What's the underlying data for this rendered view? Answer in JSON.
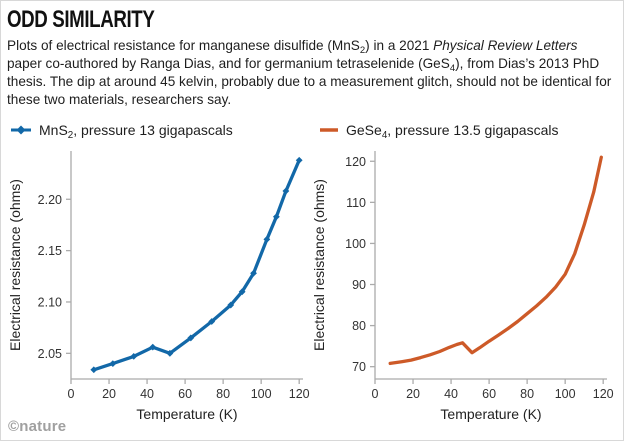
{
  "header": {
    "title": "ODD SIMILARITY",
    "caption_segments": [
      {
        "text": "Plots of electrical resistance for manganese disulfide (MnS"
      },
      {
        "text": "2",
        "sub": true
      },
      {
        "text": ") in a 2021 "
      },
      {
        "text": "Physical Review Letters",
        "italic": true
      },
      {
        "text": " paper co-authored by Ranga Dias, and for germanium tetraselenide (GeS"
      },
      {
        "text": "4",
        "sub": true
      },
      {
        "text": "), from Dias’s 2013 PhD thesis. The dip at around 45 kelvin, probably due to a measurement glitch, should not be identical for these two materials, researchers say."
      }
    ]
  },
  "legend": {
    "items": [
      {
        "id": "mns2",
        "color": "#1268a8",
        "marker": "line-diamond",
        "label_segments": [
          {
            "text": "MnS"
          },
          {
            "text": "2",
            "sub": true
          },
          {
            "text": ", pressure 13 gigapascals"
          }
        ]
      },
      {
        "id": "gese4",
        "color": "#cd5a28",
        "marker": "line",
        "label_segments": [
          {
            "text": "GeSe"
          },
          {
            "text": "4",
            "sub": true
          },
          {
            "text": ", pressure 13.5 gigapascals"
          }
        ]
      }
    ]
  },
  "footer": {
    "credit": "©nature"
  },
  "colors": {
    "mns2_line": "#1268a8",
    "gese4_line": "#cd5a28",
    "axis": "#ababab",
    "tick_text": "#333333"
  },
  "chart_data": [
    {
      "type": "line",
      "title": "MnS2, pressure 13 gigapascals",
      "xlabel": "Temperature (K)",
      "ylabel": "Electrical resistance (ohms)",
      "xlim": [
        0,
        122
      ],
      "ylim": [
        2.025,
        2.247
      ],
      "xticks": [
        0,
        20,
        40,
        60,
        80,
        100,
        120
      ],
      "xtick_labels": [
        "0",
        "20",
        "40",
        "60",
        "80",
        "100",
        "120"
      ],
      "yticks": [
        2.05,
        2.1,
        2.15,
        2.2
      ],
      "ytick_labels": [
        "2.05",
        "2.10",
        "2.15",
        "2.20"
      ],
      "grid": false,
      "legend_position": "top",
      "series": [
        {
          "name": "MnS2, pressure 13 gigapascals",
          "color": "#1268a8",
          "markers": true,
          "x": [
            12,
            22,
            33,
            43,
            52,
            63,
            74,
            84,
            90,
            96,
            103,
            108,
            113,
            120
          ],
          "y": [
            2.034,
            2.04,
            2.047,
            2.056,
            2.05,
            2.065,
            2.081,
            2.097,
            2.11,
            2.128,
            2.161,
            2.183,
            2.208,
            2.238
          ]
        }
      ]
    },
    {
      "type": "line",
      "title": "GeSe4, pressure 13.5 gigapascals",
      "xlabel": "Temperature (K)",
      "ylabel": "Electrical resistance (ohms)",
      "xlim": [
        0,
        122
      ],
      "ylim": [
        67,
        122.5
      ],
      "xticks": [
        0,
        20,
        40,
        60,
        80,
        100,
        120
      ],
      "xtick_labels": [
        "0",
        "20",
        "40",
        "60",
        "80",
        "100",
        "120"
      ],
      "yticks": [
        70,
        80,
        90,
        100,
        110,
        120
      ],
      "ytick_labels": [
        "70",
        "80",
        "90",
        "100",
        "110",
        "120"
      ],
      "grid": false,
      "legend_position": "top",
      "series": [
        {
          "name": "GeSe4, pressure 13.5 gigapascals",
          "color": "#cd5a28",
          "markers": false,
          "x": [
            8,
            14,
            19,
            24,
            29,
            34,
            39,
            43,
            46,
            51,
            55,
            60,
            65,
            70,
            75,
            80,
            85,
            90,
            95,
            100,
            105,
            110,
            115,
            119
          ],
          "y": [
            70.8,
            71.2,
            71.6,
            72.2,
            72.9,
            73.7,
            74.7,
            75.4,
            75.8,
            73.4,
            74.6,
            76.2,
            77.7,
            79.3,
            81.0,
            82.9,
            84.8,
            86.9,
            89.4,
            92.5,
            97.5,
            104.5,
            112.5,
            121
          ]
        }
      ]
    }
  ]
}
